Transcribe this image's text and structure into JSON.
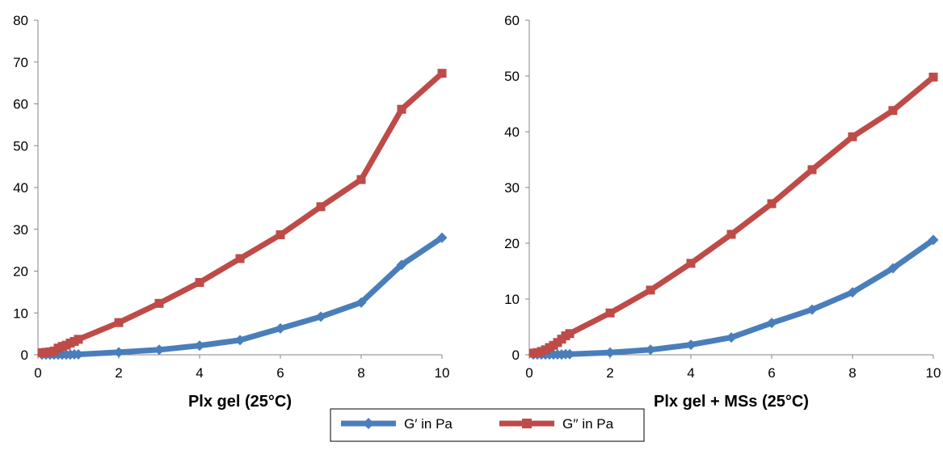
{
  "legend": {
    "items": [
      {
        "label": "G′ in Pa",
        "color": "#4a7ebb",
        "marker": "diamond"
      },
      {
        "label": "G′′ in Pa",
        "color": "#be4b48",
        "marker": "square"
      }
    ]
  },
  "chart_data": [
    {
      "type": "line",
      "title": "",
      "xlabel": "Plx gel (25°C)",
      "ylabel": "",
      "xlim": [
        0,
        10
      ],
      "ylim": [
        0,
        80
      ],
      "x_ticks": [
        0,
        2,
        4,
        6,
        8,
        10
      ],
      "y_ticks": [
        0,
        10,
        20,
        30,
        40,
        50,
        60,
        70,
        80
      ],
      "grid": false,
      "series": [
        {
          "name": "G′ in Pa",
          "color": "#4a7ebb",
          "marker": "diamond",
          "x": [
            0.1,
            0.2,
            0.3,
            0.4,
            0.5,
            0.6,
            0.7,
            0.8,
            0.9,
            1,
            2,
            3,
            4,
            5,
            6,
            7,
            8,
            9,
            10
          ],
          "y": [
            0.05,
            0.05,
            0.05,
            0.05,
            0.05,
            0.05,
            0.05,
            0.05,
            0.1,
            0.1,
            0.6,
            1.2,
            2.2,
            3.5,
            6.3,
            9.1,
            12.5,
            21.5,
            28
          ]
        },
        {
          "name": "G′′ in Pa",
          "color": "#be4b48",
          "marker": "square",
          "x": [
            0.1,
            0.2,
            0.3,
            0.4,
            0.5,
            0.6,
            0.7,
            0.8,
            0.9,
            1,
            2,
            3,
            4,
            5,
            6,
            7,
            8,
            9,
            10
          ],
          "y": [
            0.5,
            0.6,
            0.7,
            0.9,
            1.6,
            2.0,
            2.3,
            2.8,
            3.2,
            3.7,
            7.7,
            12.3,
            17.3,
            23.0,
            28.7,
            35.4,
            41.9,
            58.7,
            67.3
          ]
        }
      ]
    },
    {
      "type": "line",
      "title": "",
      "xlabel": "Plx gel + MSs (25°C)",
      "ylabel": "",
      "xlim": [
        0,
        10
      ],
      "ylim": [
        0,
        60
      ],
      "x_ticks": [
        0,
        2,
        4,
        6,
        8,
        10
      ],
      "y_ticks": [
        0,
        10,
        20,
        30,
        40,
        50,
        60
      ],
      "grid": false,
      "series": [
        {
          "name": "G′ in Pa",
          "color": "#4a7ebb",
          "marker": "diamond",
          "x": [
            0.1,
            0.2,
            0.3,
            0.4,
            0.5,
            0.6,
            0.7,
            0.8,
            0.9,
            1,
            2,
            3,
            4,
            5,
            6,
            7,
            8,
            9,
            10
          ],
          "y": [
            0.05,
            0.05,
            0.05,
            0.05,
            0.05,
            0.05,
            0.05,
            0.05,
            0.1,
            0.1,
            0.4,
            0.9,
            1.8,
            3.1,
            5.7,
            8.1,
            11.2,
            15.5,
            20.6
          ]
        },
        {
          "name": "G′′ in Pa",
          "color": "#be4b48",
          "marker": "square",
          "x": [
            0.1,
            0.2,
            0.3,
            0.4,
            0.5,
            0.6,
            0.7,
            0.8,
            0.9,
            1,
            2,
            3,
            4,
            5,
            6,
            7,
            8,
            9,
            10
          ],
          "y": [
            0.3,
            0.4,
            0.6,
            0.9,
            1.3,
            1.7,
            2.2,
            2.8,
            3.4,
            3.8,
            7.5,
            11.6,
            16.4,
            21.6,
            27.1,
            33.2,
            39.1,
            43.8,
            49.8
          ]
        }
      ]
    }
  ]
}
